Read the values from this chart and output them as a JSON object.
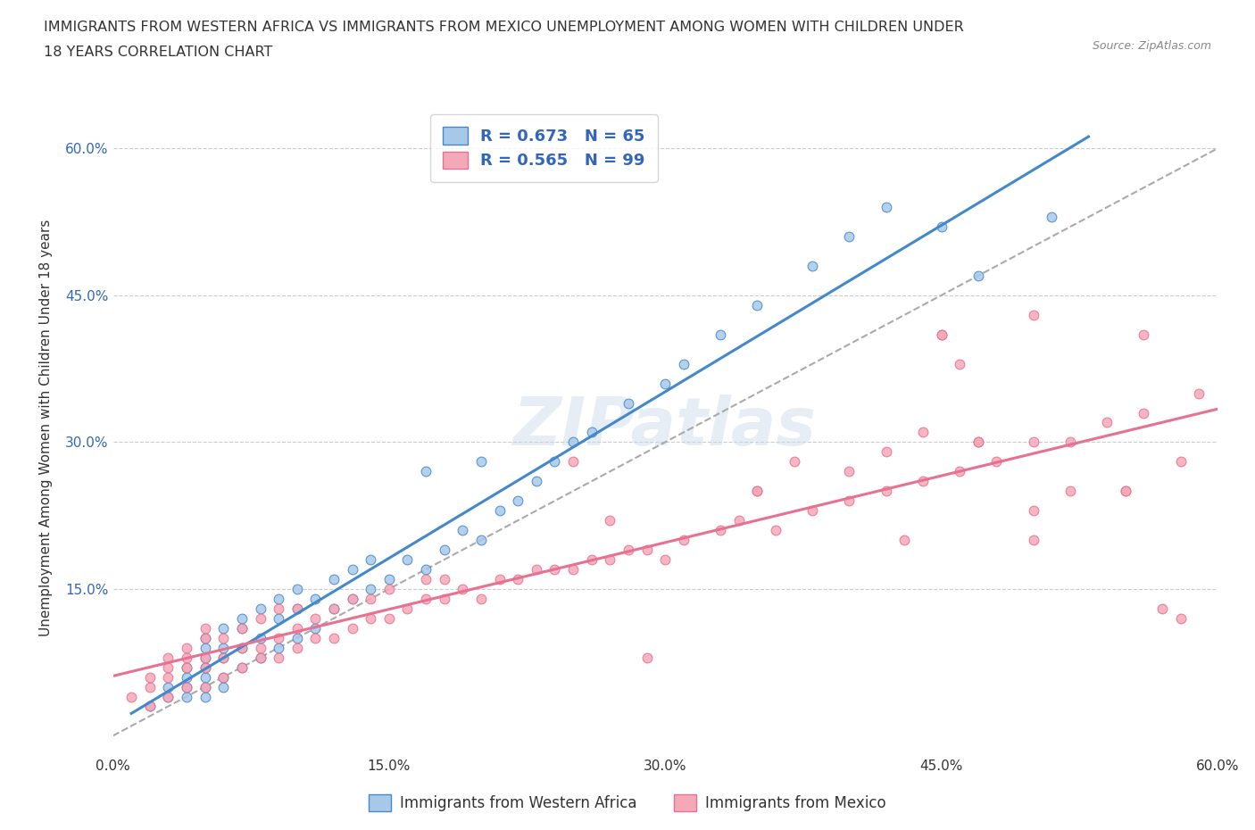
{
  "title_line1": "IMMIGRANTS FROM WESTERN AFRICA VS IMMIGRANTS FROM MEXICO UNEMPLOYMENT AMONG WOMEN WITH CHILDREN UNDER",
  "title_line2": "18 YEARS CORRELATION CHART",
  "source_text": "Source: ZipAtlas.com",
  "ylabel": "Unemployment Among Women with Children Under 18 years",
  "xlim": [
    0.0,
    0.6
  ],
  "ylim": [
    -0.02,
    0.65
  ],
  "xtick_labels": [
    "0.0%",
    "15.0%",
    "30.0%",
    "45.0%",
    "60.0%"
  ],
  "xtick_vals": [
    0.0,
    0.15,
    0.3,
    0.45,
    0.6
  ],
  "ytick_labels": [
    "15.0%",
    "30.0%",
    "45.0%",
    "60.0%"
  ],
  "ytick_vals": [
    0.15,
    0.3,
    0.45,
    0.6
  ],
  "r_africa": 0.673,
  "n_africa": 65,
  "r_mexico": 0.565,
  "n_mexico": 99,
  "legend_labels": [
    "Immigrants from Western Africa",
    "Immigrants from Mexico"
  ],
  "color_africa": "#a8c8e8",
  "color_mexico": "#f4a8b8",
  "edge_africa": "#4488cc",
  "edge_mexico": "#e87090",
  "line_africa": "#4488cc",
  "line_mexico": "#e87090",
  "dash_color": "#aaaaaa",
  "watermark": "ZIPatlas",
  "legend_text_color": "#3366bb",
  "ytick_color": "#3366bb",
  "africa_x": [
    0.02,
    0.03,
    0.03,
    0.04,
    0.04,
    0.04,
    0.04,
    0.05,
    0.05,
    0.05,
    0.05,
    0.05,
    0.05,
    0.05,
    0.06,
    0.06,
    0.06,
    0.06,
    0.06,
    0.07,
    0.07,
    0.07,
    0.07,
    0.08,
    0.08,
    0.08,
    0.09,
    0.09,
    0.09,
    0.1,
    0.1,
    0.1,
    0.11,
    0.11,
    0.12,
    0.12,
    0.13,
    0.13,
    0.14,
    0.14,
    0.15,
    0.16,
    0.17,
    0.17,
    0.18,
    0.19,
    0.2,
    0.2,
    0.21,
    0.22,
    0.23,
    0.24,
    0.25,
    0.26,
    0.28,
    0.3,
    0.31,
    0.33,
    0.35,
    0.38,
    0.4,
    0.42,
    0.45,
    0.47,
    0.51
  ],
  "africa_y": [
    0.03,
    0.04,
    0.05,
    0.04,
    0.05,
    0.06,
    0.07,
    0.04,
    0.05,
    0.06,
    0.07,
    0.08,
    0.09,
    0.1,
    0.05,
    0.06,
    0.08,
    0.09,
    0.11,
    0.07,
    0.09,
    0.11,
    0.12,
    0.08,
    0.1,
    0.13,
    0.09,
    0.12,
    0.14,
    0.1,
    0.13,
    0.15,
    0.11,
    0.14,
    0.13,
    0.16,
    0.14,
    0.17,
    0.15,
    0.18,
    0.16,
    0.18,
    0.17,
    0.27,
    0.19,
    0.21,
    0.2,
    0.28,
    0.23,
    0.24,
    0.26,
    0.28,
    0.3,
    0.31,
    0.34,
    0.36,
    0.38,
    0.41,
    0.44,
    0.48,
    0.51,
    0.54,
    0.52,
    0.47,
    0.53
  ],
  "mexico_x": [
    0.01,
    0.02,
    0.02,
    0.02,
    0.03,
    0.03,
    0.03,
    0.03,
    0.04,
    0.04,
    0.04,
    0.04,
    0.05,
    0.05,
    0.05,
    0.05,
    0.05,
    0.06,
    0.06,
    0.06,
    0.07,
    0.07,
    0.07,
    0.08,
    0.08,
    0.08,
    0.09,
    0.09,
    0.09,
    0.1,
    0.1,
    0.1,
    0.11,
    0.11,
    0.12,
    0.12,
    0.13,
    0.13,
    0.14,
    0.14,
    0.15,
    0.15,
    0.16,
    0.17,
    0.17,
    0.18,
    0.18,
    0.19,
    0.2,
    0.21,
    0.22,
    0.23,
    0.24,
    0.25,
    0.26,
    0.27,
    0.28,
    0.29,
    0.3,
    0.31,
    0.33,
    0.34,
    0.36,
    0.38,
    0.4,
    0.42,
    0.44,
    0.46,
    0.48,
    0.5,
    0.52,
    0.54,
    0.56,
    0.58,
    0.59,
    0.35,
    0.37,
    0.45,
    0.47,
    0.43,
    0.5,
    0.55,
    0.56,
    0.58,
    0.4,
    0.42,
    0.44,
    0.46,
    0.5,
    0.52,
    0.25,
    0.27,
    0.29,
    0.35,
    0.45,
    0.47,
    0.5,
    0.55,
    0.57
  ],
  "mexico_y": [
    0.04,
    0.03,
    0.05,
    0.06,
    0.04,
    0.06,
    0.07,
    0.08,
    0.05,
    0.07,
    0.08,
    0.09,
    0.05,
    0.07,
    0.08,
    0.1,
    0.11,
    0.06,
    0.08,
    0.1,
    0.07,
    0.09,
    0.11,
    0.08,
    0.09,
    0.12,
    0.08,
    0.1,
    0.13,
    0.09,
    0.11,
    0.13,
    0.1,
    0.12,
    0.1,
    0.13,
    0.11,
    0.14,
    0.12,
    0.14,
    0.12,
    0.15,
    0.13,
    0.14,
    0.16,
    0.14,
    0.16,
    0.15,
    0.14,
    0.16,
    0.16,
    0.17,
    0.17,
    0.17,
    0.18,
    0.18,
    0.19,
    0.19,
    0.18,
    0.2,
    0.21,
    0.22,
    0.21,
    0.23,
    0.24,
    0.25,
    0.26,
    0.27,
    0.28,
    0.3,
    0.3,
    0.32,
    0.33,
    0.28,
    0.35,
    0.25,
    0.28,
    0.41,
    0.3,
    0.2,
    0.2,
    0.25,
    0.41,
    0.12,
    0.27,
    0.29,
    0.31,
    0.38,
    0.43,
    0.25,
    0.28,
    0.22,
    0.08,
    0.25,
    0.41,
    0.3,
    0.23,
    0.25,
    0.13
  ]
}
